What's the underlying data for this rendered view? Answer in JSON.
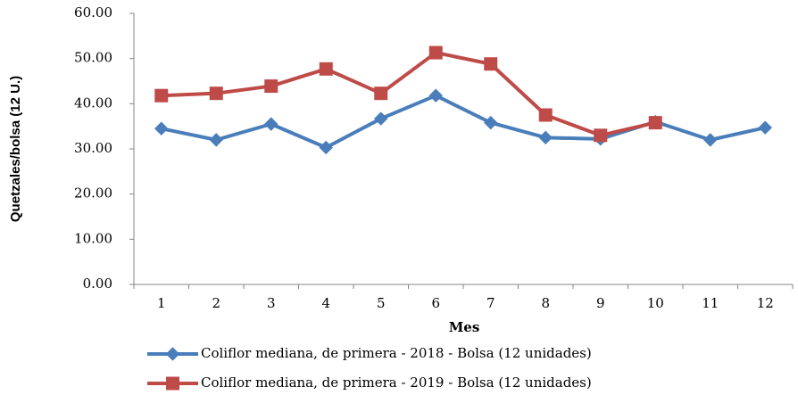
{
  "chart_data": {
    "type": "line",
    "y_label": "Quetzales/bolsa (12 U.)",
    "x_label": "Mes",
    "categories": [
      "1",
      "2",
      "3",
      "4",
      "5",
      "6",
      "7",
      "8",
      "9",
      "10",
      "11",
      "12"
    ],
    "series": [
      {
        "name": "Coliflor mediana, de primera - 2018 - Bolsa (12 unidades)",
        "color": "#4a7ebb",
        "marker": "diamond",
        "values": [
          34.5,
          32,
          35.5,
          30.3,
          36.7,
          41.8,
          35.8,
          32.5,
          32.2,
          36,
          32,
          34.7
        ]
      },
      {
        "name": "Coliflor mediana, de primera - 2019 - Bolsa (12 unidades)",
        "color": "#be4b48",
        "marker": "square",
        "values": [
          41.8,
          42.3,
          43.9,
          47.7,
          42.3,
          51.3,
          48.8,
          37.5,
          33,
          35.8,
          null,
          null
        ]
      }
    ],
    "ylim": [
      0,
      60
    ],
    "yticks": [
      {
        "value": 0,
        "label": "0.00"
      },
      {
        "value": 10,
        "label": "10.00"
      },
      {
        "value": 20,
        "label": "20.00"
      },
      {
        "value": 30,
        "label": "30.00"
      },
      {
        "value": 40,
        "label": "40.00"
      },
      {
        "value": 50,
        "label": "50.00"
      },
      {
        "value": 60,
        "label": "60.00"
      }
    ],
    "grid": false,
    "legend": "bottom"
  }
}
